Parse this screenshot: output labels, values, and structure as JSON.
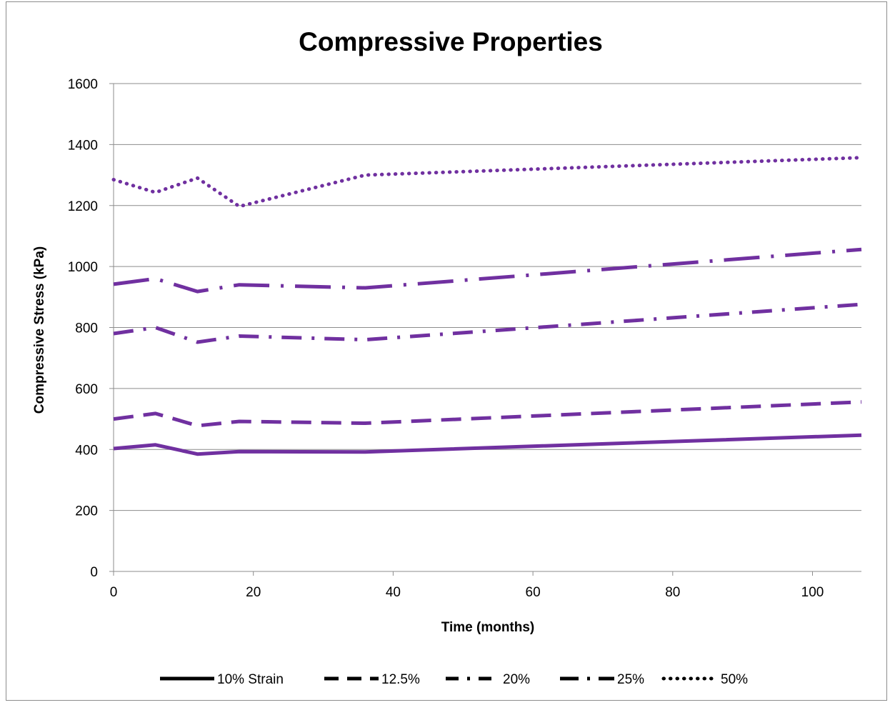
{
  "chart_data": {
    "type": "line",
    "title": "Compressive Properties",
    "xlabel": "Time (months)",
    "ylabel": "Compressive Stress (kPa)",
    "xlim": [
      0,
      107
    ],
    "ylim": [
      0,
      1600
    ],
    "xticks": [
      0,
      20,
      40,
      60,
      80,
      100
    ],
    "yticks": [
      0,
      200,
      400,
      600,
      800,
      1000,
      1200,
      1400,
      1600
    ],
    "grid": "horizontal",
    "legend_position": "bottom",
    "line_color": "#7030A0",
    "x": [
      0,
      6,
      12,
      18,
      36,
      107
    ],
    "series": [
      {
        "name": "10% Strain",
        "dash": "solid",
        "values": [
          403,
          415,
          385,
          393,
          392,
          447
        ]
      },
      {
        "name": "12.5%",
        "dash": "dash",
        "values": [
          500,
          518,
          478,
          492,
          486,
          556
        ]
      },
      {
        "name": "20%",
        "dash": "dashdot",
        "values": [
          780,
          800,
          752,
          772,
          760,
          876
        ]
      },
      {
        "name": "25%",
        "dash": "longdashdot",
        "values": [
          942,
          960,
          918,
          940,
          930,
          1056
        ]
      },
      {
        "name": "50%",
        "dash": "dot",
        "values": [
          1285,
          1243,
          1290,
          1197,
          1300,
          1357
        ]
      }
    ]
  }
}
